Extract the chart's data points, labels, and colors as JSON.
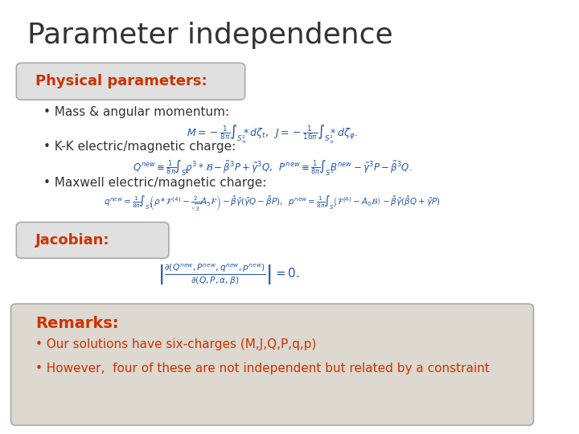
{
  "title": "Parameter independence",
  "title_color": "#333333",
  "title_fontsize": 26,
  "bg_color": "#ffffff",
  "slide_border_color": "#cccccc",
  "phys_label": "Physical parameters:",
  "phys_label_color": "#cc3300",
  "phys_box_color": "#e0e0e0",
  "bullet1_text": "Mass & angular momentum:",
  "bullet2_text": "K-K electric/magnetic charge:",
  "bullet3_text": "Maxwell electric/magnetic charge:",
  "jacobian_label": "Jacobian:",
  "jacobian_label_color": "#cc3300",
  "jacobian_box_color": "#e0e0e0",
  "remarks_label": "Remarks:",
  "remarks_label_color": "#cc3300",
  "remarks_box_color": "#ddd8d0",
  "remark1": "Our solutions have six-charges (M,J,Q,P,q,p)",
  "remark2": "However,  four of these are not independent but related by a constraint",
  "formula_color": "#2255aa",
  "bullet_color": "#333333",
  "formula_fontsize": 9,
  "label_fontsize": 13,
  "bullet_fontsize": 11
}
